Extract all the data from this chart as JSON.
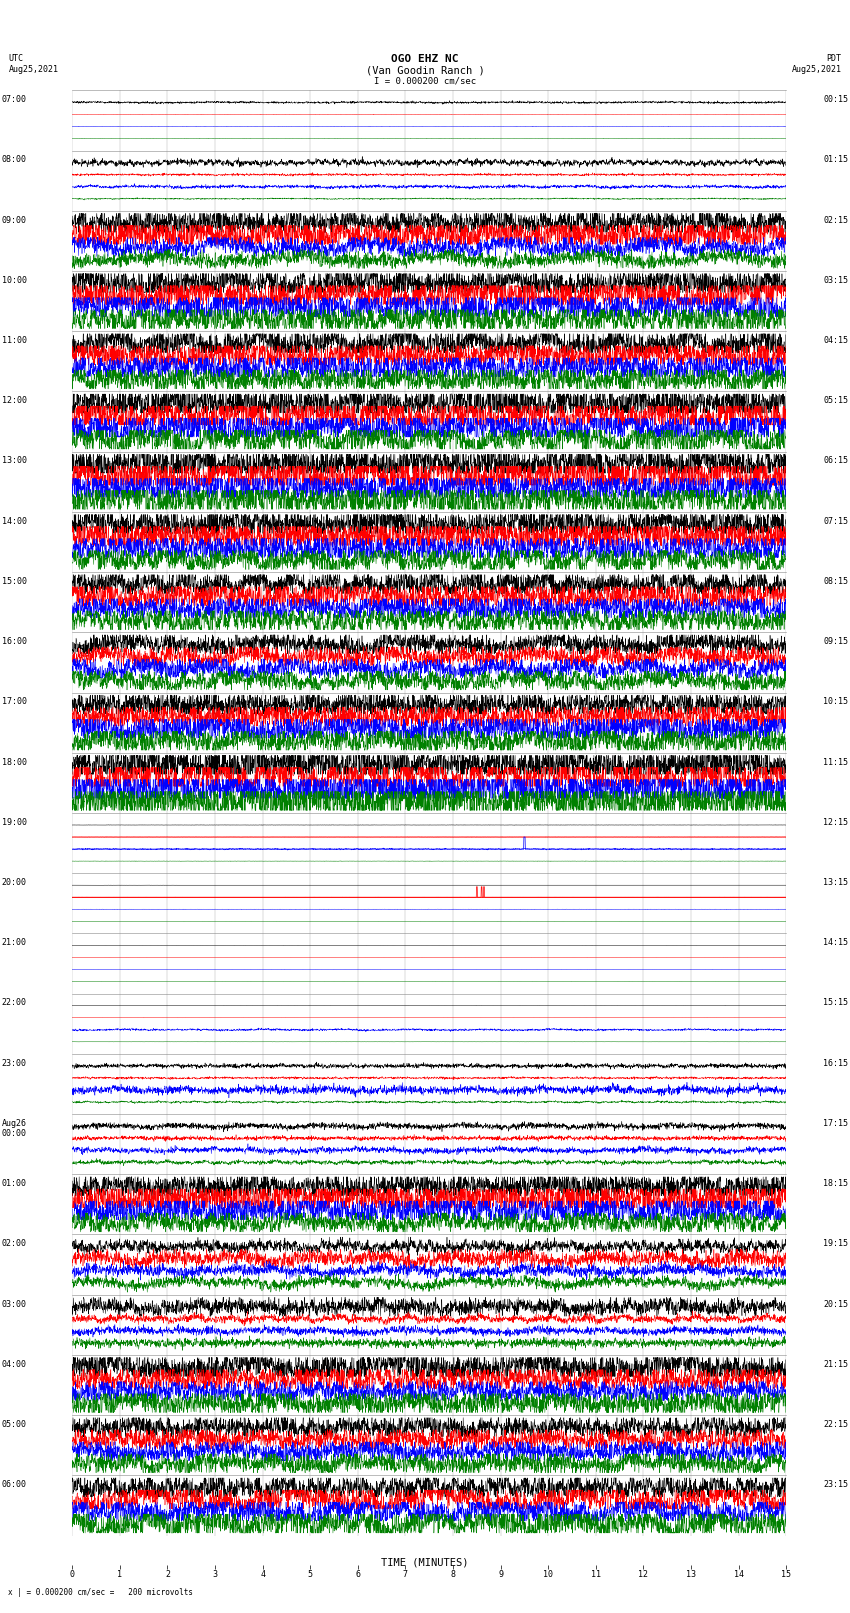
{
  "title_line1": "OGO EHZ NC",
  "title_line2": "(Van Goodin Ranch )",
  "scale_label": "I = 0.000200 cm/sec",
  "utc_label": "UTC",
  "utc_date": "Aug25,2021",
  "pdt_label": "PDT",
  "pdt_date": "Aug25,2021",
  "xlabel": "TIME (MINUTES)",
  "bottom_label": "x | = 0.000200 cm/sec =   200 microvolts",
  "xlim": [
    0,
    15
  ],
  "background_color": "#ffffff",
  "line_colors": [
    "#000000",
    "#ff0000",
    "#0000ff",
    "#008000"
  ],
  "row_labels_left": [
    "07:00",
    "08:00",
    "09:00",
    "10:00",
    "11:00",
    "12:00",
    "13:00",
    "14:00",
    "15:00",
    "16:00",
    "17:00",
    "18:00",
    "19:00",
    "20:00",
    "21:00",
    "22:00",
    "23:00",
    "Aug26\n00:00",
    "01:00",
    "02:00",
    "03:00",
    "04:00",
    "05:00",
    "06:00"
  ],
  "row_labels_right": [
    "00:15",
    "01:15",
    "02:15",
    "03:15",
    "04:15",
    "05:15",
    "06:15",
    "07:15",
    "08:15",
    "09:15",
    "10:15",
    "11:15",
    "12:15",
    "13:15",
    "14:15",
    "15:15",
    "16:15",
    "17:15",
    "18:15",
    "19:15",
    "20:15",
    "21:15",
    "22:15",
    "23:15"
  ],
  "n_rows": 24,
  "fig_width": 8.5,
  "fig_height": 16.13,
  "grid_color": "#888888",
  "title_fontsize": 8,
  "label_fontsize": 6,
  "tick_fontsize": 6
}
